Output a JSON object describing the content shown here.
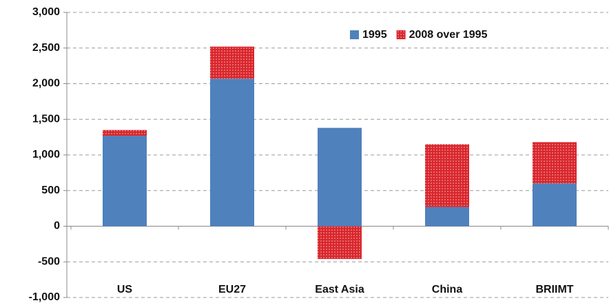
{
  "chart_data": {
    "type": "stacked_bar",
    "categories": [
      "US",
      "EU27",
      "East Asia",
      "China",
      "BRIIMT"
    ],
    "series": [
      {
        "name": "1995",
        "color": "#4f81bd",
        "values": [
          1270,
          2070,
          1380,
          270,
          600
        ]
      },
      {
        "name": "2008 over 1995",
        "color": "#d9262c",
        "values": [
          80,
          450,
          -460,
          880,
          580
        ]
      }
    ],
    "ylim": [
      -1000,
      3000
    ],
    "yticks": [
      {
        "value": -1000,
        "label": "-1,000"
      },
      -500,
      0,
      500,
      {
        "value": 1000,
        "label": "1,000"
      },
      {
        "value": 1500,
        "label": "1,500"
      },
      {
        "value": 2000,
        "label": "2,000"
      },
      {
        "value": 2500,
        "label": "2,500"
      },
      {
        "value": 3000,
        "label": "3,000"
      }
    ],
    "grid": true,
    "legend": "top-right"
  }
}
